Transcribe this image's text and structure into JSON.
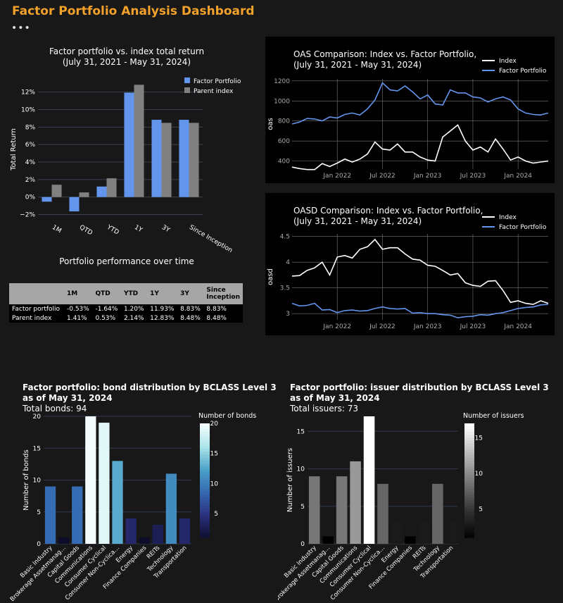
{
  "header": {
    "title": "Factor Portfolio Analysis Dashboard",
    "menu": "•••"
  },
  "colors": {
    "accent": "#f2a12b",
    "factor": "#6495ed",
    "parent": "#808080",
    "index_line": "#ffffff"
  },
  "chart_data": [
    {
      "id": "total-return",
      "type": "bar",
      "title": "Factor portfolio vs. index total return",
      "subtitle": "(July 31, 2021 - May 31, 2024)",
      "ylabel": "Total Return",
      "categories": [
        "1M",
        "QTD",
        "YTD",
        "1Y",
        "3Y",
        "Since Inception"
      ],
      "series": [
        {
          "name": "Factor Portfolio",
          "values": [
            -0.53,
            -1.64,
            1.2,
            11.93,
            8.83,
            8.83
          ]
        },
        {
          "name": "Parent index",
          "values": [
            1.41,
            0.53,
            2.14,
            12.83,
            8.48,
            8.48
          ]
        }
      ],
      "yticks": [
        "−2%",
        "0%",
        "2%",
        "4%",
        "6%",
        "8%",
        "10%",
        "12%"
      ],
      "ylim": [
        -2.6,
        13.5
      ],
      "legend": "top-right"
    },
    {
      "id": "perf-table",
      "type": "table",
      "title": "Portfolio performance over time",
      "columns": [
        "",
        "1M",
        "QTD",
        "YTD",
        "1Y",
        "3Y",
        "Since Inception"
      ],
      "rows": [
        [
          "Factor portfolio",
          "-0.53%",
          "-1.64%",
          "1.20%",
          "11.93%",
          "8.83%",
          "8.83%"
        ],
        [
          "Parent index",
          "1.41%",
          "0.53%",
          "2.14%",
          "12.83%",
          "8.48%",
          "8.48%"
        ]
      ]
    },
    {
      "id": "oas",
      "type": "line",
      "title": "OAS Comparison: Index vs. Factor Portfolio,",
      "subtitle": "(July 31, 2021 - May 31, 2024)",
      "ylabel": "oas",
      "x": [
        "2021-07",
        "2021-08",
        "2021-09",
        "2021-10",
        "2021-11",
        "2021-12",
        "2022-01",
        "2022-02",
        "2022-03",
        "2022-04",
        "2022-05",
        "2022-06",
        "2022-07",
        "2022-08",
        "2022-09",
        "2022-10",
        "2022-11",
        "2022-12",
        "2023-01",
        "2023-02",
        "2023-03",
        "2023-04",
        "2023-05",
        "2023-06",
        "2023-07",
        "2023-08",
        "2023-09",
        "2023-10",
        "2023-11",
        "2023-12",
        "2024-01",
        "2024-02",
        "2024-03",
        "2024-04",
        "2024-05"
      ],
      "series": [
        {
          "name": "Index",
          "values": [
            340,
            325,
            315,
            315,
            375,
            345,
            380,
            420,
            390,
            420,
            470,
            590,
            520,
            510,
            570,
            490,
            490,
            440,
            410,
            400,
            640,
            700,
            760,
            600,
            510,
            540,
            490,
            620,
            520,
            410,
            440,
            400,
            380,
            390,
            400
          ]
        },
        {
          "name": "Factor Portfolio",
          "values": [
            770,
            790,
            825,
            820,
            800,
            840,
            830,
            865,
            880,
            860,
            920,
            1010,
            1180,
            1110,
            1100,
            1150,
            1090,
            1020,
            1060,
            970,
            960,
            1110,
            1080,
            1080,
            1040,
            1030,
            990,
            1020,
            1040,
            1010,
            920,
            880,
            865,
            860,
            880
          ]
        }
      ],
      "xticks": [
        "Jan 2022",
        "Jul 2022",
        "Jan 2023",
        "Jul 2023",
        "Jan 2024"
      ],
      "yticks": [
        "400",
        "600",
        "800",
        "1000",
        "1200"
      ],
      "ylim": [
        320,
        1220
      ],
      "legend": "top-right"
    },
    {
      "id": "oasd",
      "type": "line",
      "title": "OASD Comparison: Index vs. Factor Portfolio,",
      "subtitle": "(July 31, 2021 - May 31, 2024)",
      "ylabel": "oasd",
      "x": [
        "2021-07",
        "2021-08",
        "2021-09",
        "2021-10",
        "2021-11",
        "2021-12",
        "2022-01",
        "2022-02",
        "2022-03",
        "2022-04",
        "2022-05",
        "2022-06",
        "2022-07",
        "2022-08",
        "2022-09",
        "2022-10",
        "2022-11",
        "2022-12",
        "2023-01",
        "2023-02",
        "2023-03",
        "2023-04",
        "2023-05",
        "2023-06",
        "2023-07",
        "2023-08",
        "2023-09",
        "2023-10",
        "2023-11",
        "2023-12",
        "2024-01",
        "2024-02",
        "2024-03",
        "2024-04",
        "2024-05"
      ],
      "series": [
        {
          "name": "Index",
          "values": [
            3.73,
            3.74,
            3.84,
            3.89,
            4.0,
            3.75,
            4.1,
            4.13,
            4.08,
            4.25,
            4.3,
            4.44,
            4.25,
            4.28,
            4.28,
            4.16,
            4.06,
            4.04,
            3.94,
            3.92,
            3.84,
            3.75,
            3.78,
            3.6,
            3.55,
            3.53,
            3.63,
            3.64,
            3.45,
            3.22,
            3.25,
            3.2,
            3.18,
            3.25,
            3.2
          ]
        },
        {
          "name": "Factor Portfolio",
          "values": [
            3.2,
            3.15,
            3.16,
            3.2,
            3.07,
            3.08,
            3.02,
            3.06,
            3.07,
            3.05,
            3.06,
            3.1,
            3.13,
            3.1,
            3.09,
            3.1,
            3.01,
            3.02,
            3.0,
            3.0,
            2.98,
            2.97,
            2.92,
            2.94,
            2.95,
            2.98,
            2.97,
            3.0,
            3.02,
            3.06,
            3.1,
            3.12,
            3.13,
            3.17,
            3.18
          ]
        }
      ],
      "xticks": [
        "Jan 2022",
        "Jul 2022",
        "Jan 2023",
        "Jul 2023",
        "Jan 2024"
      ],
      "yticks": [
        "3",
        "3.5",
        "4",
        "4.5"
      ],
      "ylim": [
        2.88,
        4.55
      ],
      "legend": "top-right"
    },
    {
      "id": "bonds",
      "type": "bar",
      "title": "Factor portfolio: bond distribution by BCLASS Level 3",
      "subtitle": "as of May 31, 2024",
      "summary": "Total bonds: 94",
      "ylabel": "Number of bonds",
      "categories": [
        "Basic Industry",
        "Brokerage Assetmanag…",
        "Capital Goods",
        "Communications",
        "Consumer Cyclical",
        "Consumer Non-Cyclica…",
        "Energy",
        "Finance Companies",
        "REITs",
        "Technology",
        "Transportation"
      ],
      "values": [
        9,
        1,
        9,
        20,
        19,
        13,
        4,
        1,
        3,
        11,
        4
      ],
      "yticks": [
        "0",
        "5",
        "10",
        "15",
        "20"
      ],
      "ylim": [
        0,
        20
      ],
      "colorbar": {
        "title": "Number of bonds",
        "ticks": [
          "5",
          "10",
          "15",
          "20"
        ],
        "scale": [
          "#0d0d2a",
          "#2a2f7c",
          "#3466b0",
          "#4aa0c8",
          "#a7e3e8",
          "#f4fdfd"
        ]
      }
    },
    {
      "id": "issuers",
      "type": "bar",
      "title": "Factor portfolio: issuer distribution by BCLASS Level 3",
      "subtitle": "as of May 31, 2024",
      "summary": "Total issuers: 73",
      "ylabel": "Number of issuers",
      "categories": [
        "Basic Industry",
        "Brokerage Assetmanag…",
        "Capital Goods",
        "Communications",
        "Consumer Cyclical",
        "Consumer Non-Cyclica…",
        "Energy",
        "Finance Companies",
        "REITs",
        "Technology",
        "Transportation"
      ],
      "values": [
        9,
        1,
        9,
        11,
        17,
        8,
        3,
        1,
        3,
        8,
        3
      ],
      "yticks": [
        "0",
        "5",
        "10",
        "15"
      ],
      "ylim": [
        0,
        17
      ],
      "colorbar": {
        "title": "Number of issuers",
        "ticks": [
          "5",
          "10",
          "15"
        ],
        "scale": [
          "#000000",
          "#333333",
          "#777777",
          "#bbbbbb",
          "#ffffff"
        ]
      }
    }
  ]
}
